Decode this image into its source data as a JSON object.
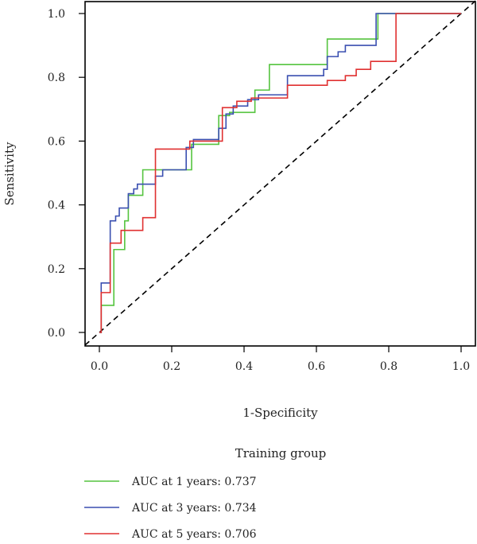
{
  "chart_data": {
    "type": "line",
    "title": "",
    "xlabel": "1-Specificity",
    "ylabel": "Sensitivity",
    "xlim": [
      0.0,
      1.0
    ],
    "ylim": [
      0.0,
      1.0
    ],
    "x_ticks": [
      "0.0",
      "0.2",
      "0.4",
      "0.6",
      "0.8",
      "1.0"
    ],
    "y_ticks": [
      "0.0",
      "0.2",
      "0.4",
      "0.6",
      "0.8",
      "1.0"
    ],
    "grid": false,
    "diagonal_reference": true,
    "legend": {
      "title": "Training group",
      "placement": "bottom"
    },
    "series": [
      {
        "name": "AUC at 1 years: 0.737",
        "color": "#55c43f",
        "points": [
          [
            0.0,
            0.0
          ],
          [
            0.005,
            0.0
          ],
          [
            0.005,
            0.085
          ],
          [
            0.04,
            0.085
          ],
          [
            0.04,
            0.26
          ],
          [
            0.07,
            0.26
          ],
          [
            0.07,
            0.35
          ],
          [
            0.08,
            0.35
          ],
          [
            0.08,
            0.43
          ],
          [
            0.12,
            0.43
          ],
          [
            0.12,
            0.51
          ],
          [
            0.255,
            0.51
          ],
          [
            0.255,
            0.59
          ],
          [
            0.33,
            0.59
          ],
          [
            0.33,
            0.68
          ],
          [
            0.36,
            0.68
          ],
          [
            0.36,
            0.69
          ],
          [
            0.43,
            0.69
          ],
          [
            0.43,
            0.76
          ],
          [
            0.47,
            0.76
          ],
          [
            0.47,
            0.84
          ],
          [
            0.63,
            0.84
          ],
          [
            0.63,
            0.92
          ],
          [
            0.77,
            0.92
          ],
          [
            0.77,
            1.0
          ],
          [
            1.0,
            1.0
          ]
        ]
      },
      {
        "name": "AUC at 3 years: 0.734",
        "color": "#3a4fb0",
        "points": [
          [
            0.0,
            0.0
          ],
          [
            0.005,
            0.0
          ],
          [
            0.005,
            0.155
          ],
          [
            0.03,
            0.155
          ],
          [
            0.03,
            0.35
          ],
          [
            0.045,
            0.35
          ],
          [
            0.045,
            0.365
          ],
          [
            0.055,
            0.365
          ],
          [
            0.055,
            0.39
          ],
          [
            0.08,
            0.39
          ],
          [
            0.08,
            0.435
          ],
          [
            0.095,
            0.435
          ],
          [
            0.095,
            0.45
          ],
          [
            0.105,
            0.45
          ],
          [
            0.105,
            0.465
          ],
          [
            0.155,
            0.465
          ],
          [
            0.155,
            0.49
          ],
          [
            0.175,
            0.49
          ],
          [
            0.175,
            0.51
          ],
          [
            0.24,
            0.51
          ],
          [
            0.24,
            0.58
          ],
          [
            0.26,
            0.58
          ],
          [
            0.26,
            0.605
          ],
          [
            0.33,
            0.605
          ],
          [
            0.33,
            0.64
          ],
          [
            0.35,
            0.64
          ],
          [
            0.35,
            0.685
          ],
          [
            0.37,
            0.685
          ],
          [
            0.37,
            0.71
          ],
          [
            0.41,
            0.71
          ],
          [
            0.41,
            0.73
          ],
          [
            0.44,
            0.73
          ],
          [
            0.44,
            0.745
          ],
          [
            0.52,
            0.745
          ],
          [
            0.52,
            0.805
          ],
          [
            0.62,
            0.805
          ],
          [
            0.62,
            0.825
          ],
          [
            0.63,
            0.825
          ],
          [
            0.63,
            0.865
          ],
          [
            0.66,
            0.865
          ],
          [
            0.66,
            0.88
          ],
          [
            0.68,
            0.88
          ],
          [
            0.68,
            0.9
          ],
          [
            0.765,
            0.9
          ],
          [
            0.765,
            1.0
          ],
          [
            1.0,
            1.0
          ]
        ]
      },
      {
        "name": "AUC at 5 years: 0.706",
        "color": "#e03030",
        "points": [
          [
            0.0,
            0.0
          ],
          [
            0.005,
            0.0
          ],
          [
            0.005,
            0.125
          ],
          [
            0.03,
            0.125
          ],
          [
            0.03,
            0.28
          ],
          [
            0.06,
            0.28
          ],
          [
            0.06,
            0.32
          ],
          [
            0.12,
            0.32
          ],
          [
            0.12,
            0.36
          ],
          [
            0.155,
            0.36
          ],
          [
            0.155,
            0.575
          ],
          [
            0.25,
            0.575
          ],
          [
            0.25,
            0.6
          ],
          [
            0.34,
            0.6
          ],
          [
            0.34,
            0.705
          ],
          [
            0.38,
            0.705
          ],
          [
            0.38,
            0.725
          ],
          [
            0.42,
            0.725
          ],
          [
            0.42,
            0.735
          ],
          [
            0.52,
            0.735
          ],
          [
            0.52,
            0.775
          ],
          [
            0.63,
            0.775
          ],
          [
            0.63,
            0.79
          ],
          [
            0.68,
            0.79
          ],
          [
            0.68,
            0.805
          ],
          [
            0.71,
            0.805
          ],
          [
            0.71,
            0.825
          ],
          [
            0.75,
            0.825
          ],
          [
            0.75,
            0.85
          ],
          [
            0.82,
            0.85
          ],
          [
            0.82,
            1.0
          ],
          [
            1.0,
            1.0
          ]
        ]
      }
    ]
  }
}
